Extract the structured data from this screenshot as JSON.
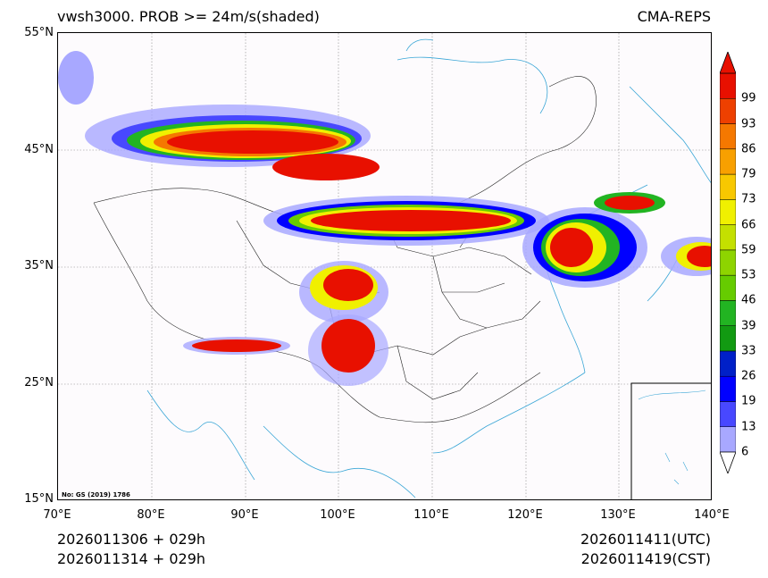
{
  "header": {
    "title_left": "vwsh3000. PROB >= 24m/s(shaded)",
    "title_right": "CMA-REPS"
  },
  "axes": {
    "y_ticks": [
      "55°N",
      "45°N",
      "35°N",
      "25°N",
      "15°N"
    ],
    "x_ticks": [
      "70°E",
      "80°E",
      "90°E",
      "100°E",
      "110°E",
      "120°E",
      "130°E",
      "140°E"
    ],
    "lon_range": [
      70,
      140
    ],
    "lat_range": [
      15,
      55
    ]
  },
  "map": {
    "watermark": "No: GS (2019) 1786",
    "inset": "South China Sea inset"
  },
  "colorbar": {
    "labels": [
      "6",
      "13",
      "19",
      "26",
      "33",
      "39",
      "46",
      "53",
      "59",
      "66",
      "73",
      "79",
      "86",
      "93",
      "99"
    ],
    "colors": [
      "#a8a8ff",
      "#4848ff",
      "#0000ff",
      "#0020c8",
      "#129a12",
      "#22b422",
      "#66cc00",
      "#8ed400",
      "#c4e000",
      "#f0f000",
      "#f8c800",
      "#f8a000",
      "#f57800",
      "#ee4000",
      "#e81000"
    ]
  },
  "footer": {
    "init_utc": "2026011306  +  029h",
    "init_cst": "2026011314  +  029h",
    "valid_utc": "2026011411(UTC)",
    "valid_cst": "2026011419(CST)"
  }
}
